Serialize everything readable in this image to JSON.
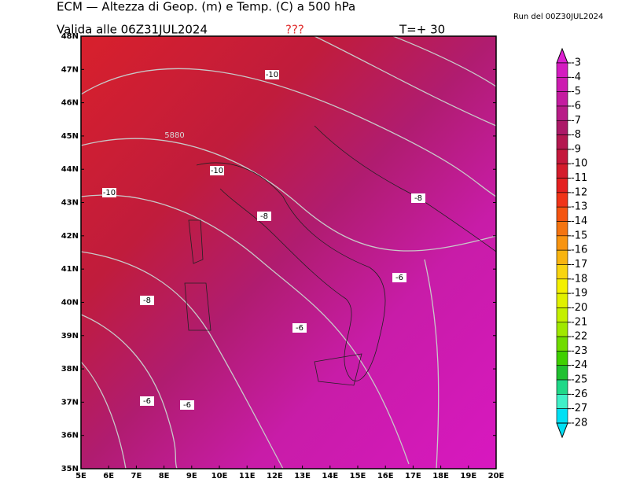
{
  "header": {
    "title": "ECM — Altezza di Geop. (m) e Temp. (C) a 500 hPa",
    "valid": "Valida alle 06Z31JUL2024",
    "flag": "???",
    "step": "T=+ 30",
    "run": "Run del 00Z30JUL2024"
  },
  "map": {
    "lat_labels": [
      "35N",
      "36N",
      "37N",
      "38N",
      "39N",
      "40N",
      "41N",
      "42N",
      "43N",
      "44N",
      "45N",
      "46N",
      "47N",
      "48N"
    ],
    "lon_labels": [
      "5E",
      "6E",
      "7E",
      "8E",
      "9E",
      "10E",
      "11E",
      "12E",
      "13E",
      "14E",
      "15E",
      "16E",
      "17E",
      "18E",
      "19E",
      "20E"
    ],
    "contour_labels": [
      "-10",
      "5880",
      "-10",
      "-10",
      "-8",
      "-8",
      "-6",
      "-8",
      "-6",
      "-6",
      "-6"
    ]
  },
  "colorbar": {
    "labels": [
      "-3",
      "-4",
      "-5",
      "-6",
      "-7",
      "-8",
      "-9",
      "-10",
      "-11",
      "-12",
      "-13",
      "-14",
      "-15",
      "-16",
      "-17",
      "-18",
      "-19",
      "-20",
      "-21",
      "-22",
      "-23",
      "-24",
      "-25",
      "-26",
      "-27",
      "-28"
    ],
    "colors": [
      "#dc20d0",
      "#d41cc0",
      "#cc1cb0",
      "#c41ca0",
      "#b81c88",
      "#ac1a68",
      "#b41850",
      "#c4183c",
      "#d41c2c",
      "#e42020",
      "#f03418",
      "#f45410",
      "#f47410",
      "#f89410",
      "#f8b410",
      "#f8d410",
      "#f4f000",
      "#e0f000",
      "#c4f000",
      "#a0e800",
      "#70dc00",
      "#40d000",
      "#20c030",
      "#20d888",
      "#40f0c8",
      "#00e0f4"
    ]
  }
}
